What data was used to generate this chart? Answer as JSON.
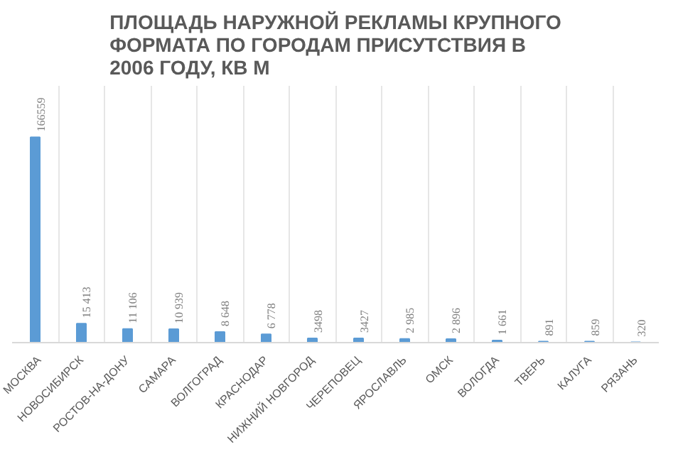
{
  "chart_data": {
    "type": "bar",
    "title": "ПЛОЩАДЬ НАРУЖНОЙ РЕКЛАМЫ КРУПНОГО ФОРМАТА ПО ГОРОДАМ ПРИСУТСТВИЯ В 2006 ГОДУ, КВ М",
    "categories": [
      "МОСКВА",
      "НОВОСИБИРСК",
      "РОСТОВ-НА-ДОНУ",
      "САМАРА",
      "ВОЛГОГРАД",
      "КРАСНОДАР",
      "НИЖНИЙ НОВГОРОД",
      "ЧЕРЕПОВЕЦ",
      "ЯРОСЛАВЛЬ",
      "ОМСК",
      "ВОЛОГДА",
      "ТВЕРЬ",
      "КАЛУГА",
      "РЯЗАНЬ"
    ],
    "values": [
      166559,
      15413,
      11106,
      10939,
      8648,
      6778,
      3498,
      3427,
      2985,
      2896,
      1661,
      891,
      859,
      320
    ],
    "value_labels": [
      "166559",
      "15 413",
      "11 106",
      "10 939",
      "8 648",
      "6 778",
      "3498",
      "3427",
      "2 985",
      "2 896",
      "1 661",
      "891",
      "859",
      "320"
    ],
    "color": "#5b9bd5",
    "grid": "x"
  }
}
